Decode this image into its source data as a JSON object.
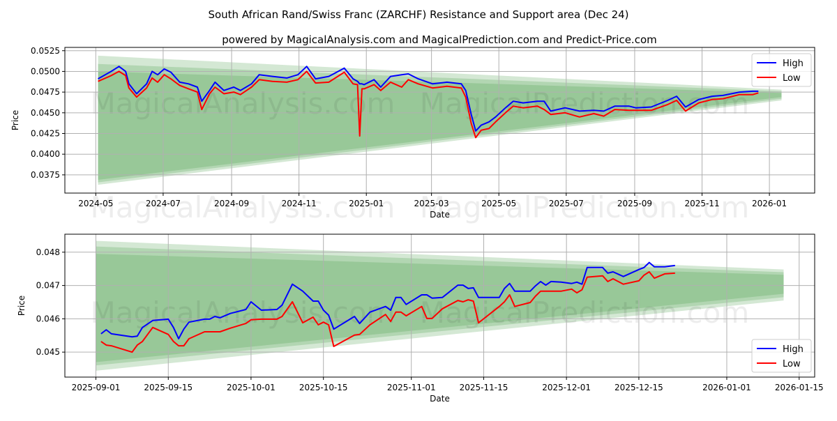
{
  "title": "South African Rand/Swiss Franc (ZARCHF) Resistance and Support area (Dec 24)",
  "subtitle": "powered by MagicalAnalysis.com and MagicalPrediction.com and Predict-Price.com",
  "watermarks": [
    "MagicalAnalysis.com",
    "MagicalPrediction.com"
  ],
  "colors": {
    "high": "#0000ff",
    "low": "#ff0000",
    "band": "#3c963c",
    "grid": "#b0b0b0"
  },
  "chart_data": [
    {
      "type": "line",
      "xlabel": "Date",
      "ylabel": "Price",
      "xlim": [
        "2024-04-03",
        "2026-02-11"
      ],
      "ylim": [
        0.0353,
        0.0529
      ],
      "yticks": [
        "0.0375",
        "0.0400",
        "0.0425",
        "0.0450",
        "0.0475",
        "0.0500",
        "0.0525"
      ],
      "xticks": [
        "2024-05",
        "2024-07",
        "2024-09",
        "2024-11",
        "2025-01",
        "2025-03",
        "2025-05",
        "2025-07",
        "2025-09",
        "2025-11",
        "2026-01"
      ],
      "grid": true,
      "legend": {
        "position": "top-right",
        "entries": [
          "High",
          "Low"
        ]
      },
      "bands": {
        "start": "2024-05-03",
        "end": "2026-01-12",
        "levels": [
          {
            "start": [
              0.0519,
              0.0363
            ],
            "end": [
              0.0478,
              0.0465
            ]
          },
          {
            "start": [
              0.0509,
              0.0366
            ],
            "end": [
              0.0476,
              0.0467
            ]
          },
          {
            "start": [
              0.05,
              0.0369
            ],
            "end": [
              0.0474,
              0.0469
            ]
          }
        ]
      },
      "x": [
        "2024-05-03",
        "2024-05-15",
        "2024-05-22",
        "2024-05-28",
        "2024-05-31",
        "2024-06-07",
        "2024-06-16",
        "2024-06-21",
        "2024-06-26",
        "2024-07-02",
        "2024-07-08",
        "2024-07-16",
        "2024-07-24",
        "2024-08-01",
        "2024-08-05",
        "2024-08-12",
        "2024-08-17",
        "2024-08-25",
        "2024-09-03",
        "2024-09-09",
        "2024-09-19",
        "2024-09-26",
        "2024-10-08",
        "2024-10-21",
        "2024-10-31",
        "2024-11-08",
        "2024-11-16",
        "2024-11-28",
        "2024-12-12",
        "2024-12-20",
        "2024-12-24",
        "2024-12-26",
        "2024-12-28",
        "2024-12-30",
        "2025-01-08",
        "2025-01-14",
        "2025-01-23",
        "2025-02-02",
        "2025-02-08",
        "2025-02-17",
        "2025-03-02",
        "2025-03-15",
        "2025-03-28",
        "2025-04-01",
        "2025-04-06",
        "2025-04-10",
        "2025-04-15",
        "2025-04-22",
        "2025-04-28",
        "2025-05-07",
        "2025-05-14",
        "2025-05-23",
        "2025-06-05",
        "2025-06-11",
        "2025-06-17",
        "2025-06-30",
        "2025-07-13",
        "2025-07-26",
        "2025-08-04",
        "2025-08-14",
        "2025-08-27",
        "2025-09-02",
        "2025-09-16",
        "2025-10-01",
        "2025-10-09",
        "2025-10-17",
        "2025-10-29",
        "2025-11-10",
        "2025-11-20",
        "2025-12-05",
        "2025-12-17",
        "2025-12-22"
      ],
      "series": [
        {
          "name": "High",
          "values": [
            0.0491,
            0.05,
            0.0506,
            0.05,
            0.0485,
            0.0473,
            0.0485,
            0.05,
            0.0496,
            0.0503,
            0.0499,
            0.0487,
            0.0485,
            0.0481,
            0.0464,
            0.0477,
            0.0487,
            0.0477,
            0.0481,
            0.0477,
            0.0485,
            0.0496,
            0.0494,
            0.0492,
            0.0496,
            0.0506,
            0.0491,
            0.0494,
            0.0504,
            0.0491,
            0.0488,
            0.0485,
            0.0485,
            0.0484,
            0.049,
            0.0481,
            0.0494,
            0.0496,
            0.0497,
            0.0491,
            0.0485,
            0.0487,
            0.0485,
            0.0477,
            0.0448,
            0.0428,
            0.0435,
            0.0439,
            0.0445,
            0.0456,
            0.0464,
            0.0462,
            0.0464,
            0.0464,
            0.0452,
            0.0456,
            0.0452,
            0.0453,
            0.0452,
            0.0458,
            0.0458,
            0.0456,
            0.0457,
            0.0465,
            0.047,
            0.0457,
            0.0466,
            0.047,
            0.0471,
            0.0475,
            0.0476,
            0.0476
          ]
        },
        {
          "name": "Low",
          "values": [
            0.0488,
            0.0495,
            0.05,
            0.0495,
            0.048,
            0.0469,
            0.048,
            0.0492,
            0.0487,
            0.0496,
            0.0491,
            0.0483,
            0.0479,
            0.0475,
            0.0454,
            0.0473,
            0.0481,
            0.0473,
            0.0475,
            0.0472,
            0.0481,
            0.049,
            0.0488,
            0.0487,
            0.049,
            0.05,
            0.0486,
            0.0487,
            0.0499,
            0.0485,
            0.0484,
            0.0422,
            0.0479,
            0.0479,
            0.0484,
            0.0477,
            0.0487,
            0.0481,
            0.049,
            0.0485,
            0.048,
            0.0482,
            0.048,
            0.0469,
            0.0437,
            0.042,
            0.0429,
            0.0431,
            0.0439,
            0.045,
            0.0458,
            0.0456,
            0.0458,
            0.0454,
            0.0448,
            0.045,
            0.0445,
            0.0449,
            0.0446,
            0.0454,
            0.0453,
            0.0453,
            0.0453,
            0.046,
            0.0465,
            0.0452,
            0.0462,
            0.0466,
            0.0467,
            0.0472,
            0.0472,
            0.0474
          ]
        }
      ]
    },
    {
      "type": "line",
      "xlabel": "Date",
      "ylabel": "Price",
      "xlim": [
        "2025-08-26",
        "2026-01-18"
      ],
      "ylim": [
        0.04425,
        0.04854
      ],
      "yticks": [
        "0.045",
        "0.046",
        "0.047",
        "0.048"
      ],
      "xticks": [
        "2025-09-01",
        "2025-09-15",
        "2025-10-01",
        "2025-10-15",
        "2025-11-01",
        "2025-11-15",
        "2025-12-01",
        "2025-12-15",
        "2026-01-01",
        "2026-01-15"
      ],
      "grid": true,
      "legend": {
        "position": "bottom-right",
        "entries": [
          "High",
          "Low"
        ]
      },
      "bands": {
        "start": "2025-09-01",
        "end": "2026-01-12",
        "levels": [
          {
            "start": [
              0.04834,
              0.04444
            ],
            "end": [
              0.04748,
              0.04655
            ]
          },
          {
            "start": [
              0.04817,
              0.0446
            ],
            "end": [
              0.0474,
              0.04665
            ]
          },
          {
            "start": [
              0.04795,
              0.0447
            ],
            "end": [
              0.04732,
              0.04675
            ]
          }
        ]
      },
      "x": [
        "2025-09-02",
        "2025-09-03",
        "2025-09-04",
        "2025-09-08",
        "2025-09-09",
        "2025-09-10",
        "2025-09-12",
        "2025-09-15",
        "2025-09-16",
        "2025-09-17",
        "2025-09-18",
        "2025-09-19",
        "2025-09-22",
        "2025-09-23",
        "2025-09-24",
        "2025-09-25",
        "2025-09-27",
        "2025-09-30",
        "2025-10-01",
        "2025-10-03",
        "2025-10-06",
        "2025-10-07",
        "2025-10-09",
        "2025-10-11",
        "2025-10-13",
        "2025-10-14",
        "2025-10-15",
        "2025-10-16",
        "2025-10-17",
        "2025-10-21",
        "2025-10-22",
        "2025-10-24",
        "2025-10-27",
        "2025-10-28",
        "2025-10-29",
        "2025-10-30",
        "2025-10-31",
        "2025-11-03",
        "2025-11-04",
        "2025-11-05",
        "2025-11-07",
        "2025-11-10",
        "2025-11-11",
        "2025-11-12",
        "2025-11-13",
        "2025-11-14",
        "2025-11-18",
        "2025-11-19",
        "2025-11-20",
        "2025-11-21",
        "2025-11-24",
        "2025-11-25",
        "2025-11-26",
        "2025-11-27",
        "2025-11-28",
        "2025-11-30",
        "2025-12-02",
        "2025-12-03",
        "2025-12-04",
        "2025-12-05",
        "2025-12-08",
        "2025-12-09",
        "2025-12-10",
        "2025-12-12",
        "2025-12-15",
        "2025-12-16",
        "2025-12-17",
        "2025-12-18",
        "2025-12-20",
        "2025-12-22"
      ],
      "series": [
        {
          "name": "High",
          "values": [
            0.04555,
            0.04567,
            0.04555,
            0.04546,
            0.04548,
            0.04574,
            0.04595,
            0.04599,
            0.04574,
            0.0454,
            0.04569,
            0.0459,
            0.04599,
            0.04599,
            0.04607,
            0.04603,
            0.04616,
            0.04628,
            0.04651,
            0.04626,
            0.04628,
            0.04641,
            0.04704,
            0.04683,
            0.04653,
            0.04653,
            0.04626,
            0.04611,
            0.04569,
            0.04607,
            0.04586,
            0.0462,
            0.04637,
            0.04626,
            0.04664,
            0.04664,
            0.04643,
            0.04672,
            0.04672,
            0.04662,
            0.04664,
            0.04701,
            0.04701,
            0.04691,
            0.04693,
            0.04664,
            0.04664,
            0.04691,
            0.04706,
            0.04683,
            0.04683,
            0.04699,
            0.04712,
            0.04701,
            0.04712,
            0.0471,
            0.04706,
            0.0471,
            0.04704,
            0.04754,
            0.04754,
            0.04737,
            0.04741,
            0.04727,
            0.04748,
            0.04754,
            0.04769,
            0.04756,
            0.04756,
            0.0476
          ]
        },
        {
          "name": "Low",
          "values": [
            0.04532,
            0.04521,
            0.04519,
            0.045,
            0.04521,
            0.04532,
            0.04574,
            0.04553,
            0.04532,
            0.04519,
            0.04519,
            0.0454,
            0.04561,
            0.04561,
            0.04561,
            0.04561,
            0.04572,
            0.04586,
            0.04597,
            0.04599,
            0.04599,
            0.04607,
            0.04651,
            0.04588,
            0.04605,
            0.04582,
            0.0459,
            0.04582,
            0.04517,
            0.04551,
            0.04553,
            0.04582,
            0.04613,
            0.04592,
            0.0462,
            0.0462,
            0.04609,
            0.04637,
            0.04601,
            0.04601,
            0.0463,
            0.04655,
            0.04651,
            0.04657,
            0.04653,
            0.04588,
            0.04637,
            0.04651,
            0.04672,
            0.04637,
            0.04649,
            0.04668,
            0.04683,
            0.04683,
            0.04683,
            0.04683,
            0.04689,
            0.04678,
            0.04687,
            0.04725,
            0.04729,
            0.04712,
            0.0472,
            0.04704,
            0.04714,
            0.04731,
            0.04741,
            0.04722,
            0.04735,
            0.04737
          ]
        }
      ]
    }
  ]
}
